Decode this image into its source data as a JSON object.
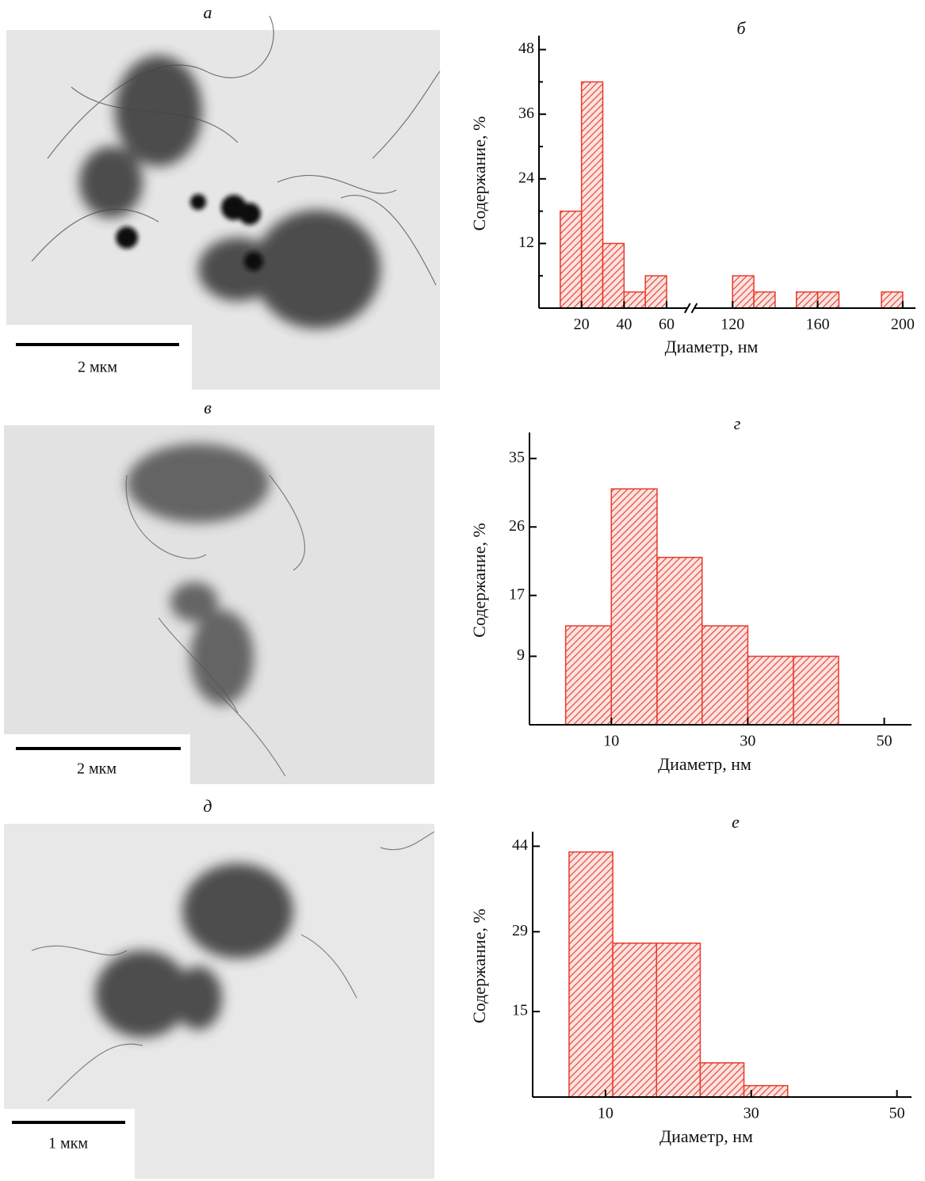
{
  "images": [
    {
      "label": "а",
      "scale_bar": "2 мкм"
    },
    {
      "label": "в",
      "scale_bar": "2 мкм"
    },
    {
      "label": "д",
      "scale_bar": "1 мкм"
    }
  ],
  "chart_data": [
    {
      "type": "histogram",
      "title": "б",
      "xlabel": "Диаметр, нм",
      "ylabel": "Содержание, %",
      "bins": [
        10,
        20,
        30,
        40,
        50,
        60,
        70,
        80,
        90,
        100,
        110,
        120,
        130,
        140,
        150,
        160,
        170,
        180,
        190,
        200
      ],
      "values": [
        18,
        42,
        12,
        3,
        6,
        null,
        null,
        null,
        null,
        null,
        null,
        6,
        3,
        0,
        3,
        3,
        0,
        0,
        3
      ],
      "color": "#e8392b",
      "xlim": [
        0,
        206
      ],
      "xbreak": [
        65,
        110
      ],
      "xticks": [
        20,
        40,
        60,
        120,
        160,
        200
      ],
      "ylim": [
        0,
        50
      ],
      "yticks": [
        12,
        24,
        36,
        48
      ],
      "yminorticks": [
        6,
        18,
        30,
        42
      ]
    },
    {
      "type": "histogram",
      "title": "г",
      "xlabel": "Диаметр, нм",
      "ylabel": "Содержание, %",
      "bins": [
        3.3,
        10,
        16.7,
        23.3,
        30,
        36.7,
        43.3
      ],
      "values": [
        13,
        31,
        22,
        13,
        9,
        9
      ],
      "color": "#e8392b",
      "xlim": [
        -2,
        54
      ],
      "xticks": [
        10,
        30,
        50
      ],
      "ylim": [
        0,
        38
      ],
      "yticks": [
        9,
        17,
        26,
        35
      ]
    },
    {
      "type": "histogram",
      "title": "е",
      "xlabel": "Диаметр, нм",
      "ylabel": "Содержание, %",
      "bins": [
        5,
        11,
        17,
        23,
        29,
        35
      ],
      "values": [
        43,
        27,
        27,
        6,
        2
      ],
      "color": "#e8392b",
      "xlim": [
        0,
        52
      ],
      "xticks": [
        10,
        30,
        50
      ],
      "ylim": [
        0,
        46
      ],
      "yticks": [
        15,
        29,
        44
      ]
    }
  ]
}
